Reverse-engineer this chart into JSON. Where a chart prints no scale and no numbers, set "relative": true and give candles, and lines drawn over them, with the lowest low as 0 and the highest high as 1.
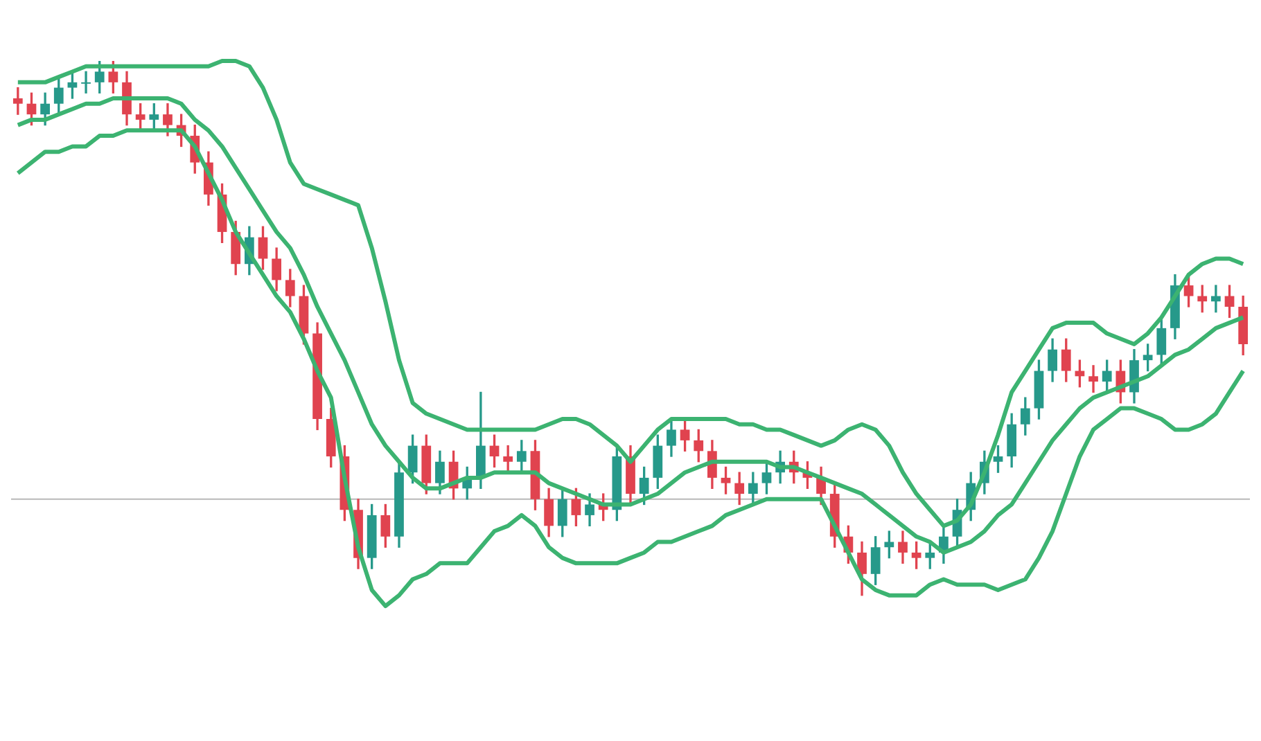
{
  "chart_data": {
    "type": "candlestick",
    "relative": true,
    "categories": [
      null,
      null,
      null,
      null,
      null,
      null,
      null,
      null,
      null,
      null,
      null,
      null,
      null,
      null,
      null,
      null,
      null,
      null,
      null,
      null,
      null,
      null,
      null,
      null,
      null,
      null,
      null,
      null,
      null,
      null,
      null,
      null,
      null,
      null,
      null,
      null,
      null,
      null,
      null,
      null,
      null,
      null,
      null,
      null,
      null,
      null,
      null,
      null,
      null,
      null,
      null,
      null,
      null,
      null,
      null,
      null,
      null,
      null,
      null,
      null,
      null,
      null,
      null,
      null,
      null,
      null,
      null,
      null,
      null,
      null,
      null,
      null,
      null,
      null,
      null,
      null,
      null,
      null,
      null,
      null,
      null,
      null,
      null,
      null,
      null,
      null,
      null,
      null,
      null,
      null,
      null
    ],
    "ohlc": [
      [
        0.93,
        0.95,
        0.9,
        0.92
      ],
      [
        0.92,
        0.94,
        0.88,
        0.9
      ],
      [
        0.9,
        0.94,
        0.88,
        0.92
      ],
      [
        0.92,
        0.97,
        0.9,
        0.95
      ],
      [
        0.95,
        0.98,
        0.93,
        0.96
      ],
      [
        0.96,
        0.98,
        0.94,
        0.96
      ],
      [
        0.96,
        1.0,
        0.94,
        0.98
      ],
      [
        0.98,
        1.0,
        0.94,
        0.96
      ],
      [
        0.96,
        0.98,
        0.88,
        0.9
      ],
      [
        0.9,
        0.92,
        0.87,
        0.89
      ],
      [
        0.89,
        0.92,
        0.87,
        0.9
      ],
      [
        0.9,
        0.92,
        0.86,
        0.88
      ],
      [
        0.88,
        0.9,
        0.84,
        0.86
      ],
      [
        0.86,
        0.88,
        0.79,
        0.81
      ],
      [
        0.81,
        0.83,
        0.73,
        0.75
      ],
      [
        0.75,
        0.77,
        0.66,
        0.68
      ],
      [
        0.68,
        0.7,
        0.6,
        0.62
      ],
      [
        0.62,
        0.69,
        0.6,
        0.67
      ],
      [
        0.67,
        0.69,
        0.61,
        0.63
      ],
      [
        0.63,
        0.65,
        0.57,
        0.59
      ],
      [
        0.59,
        0.61,
        0.54,
        0.56
      ],
      [
        0.56,
        0.58,
        0.47,
        0.49
      ],
      [
        0.49,
        0.51,
        0.31,
        0.33
      ],
      [
        0.33,
        0.35,
        0.24,
        0.26
      ],
      [
        0.26,
        0.28,
        0.14,
        0.16
      ],
      [
        0.16,
        0.18,
        0.05,
        0.07
      ],
      [
        0.07,
        0.17,
        0.05,
        0.15
      ],
      [
        0.15,
        0.17,
        0.09,
        0.11
      ],
      [
        0.11,
        0.25,
        0.09,
        0.23
      ],
      [
        0.23,
        0.3,
        0.21,
        0.28
      ],
      [
        0.28,
        0.3,
        0.19,
        0.21
      ],
      [
        0.21,
        0.27,
        0.19,
        0.25
      ],
      [
        0.25,
        0.27,
        0.18,
        0.2
      ],
      [
        0.2,
        0.24,
        0.18,
        0.22
      ],
      [
        0.22,
        0.38,
        0.2,
        0.28
      ],
      [
        0.28,
        0.3,
        0.24,
        0.26
      ],
      [
        0.26,
        0.28,
        0.23,
        0.25
      ],
      [
        0.25,
        0.29,
        0.23,
        0.27
      ],
      [
        0.27,
        0.29,
        0.16,
        0.18
      ],
      [
        0.18,
        0.2,
        0.11,
        0.13
      ],
      [
        0.13,
        0.2,
        0.11,
        0.18
      ],
      [
        0.18,
        0.2,
        0.13,
        0.15
      ],
      [
        0.15,
        0.19,
        0.13,
        0.17
      ],
      [
        0.17,
        0.19,
        0.14,
        0.16
      ],
      [
        0.16,
        0.28,
        0.14,
        0.26
      ],
      [
        0.26,
        0.28,
        0.17,
        0.19
      ],
      [
        0.19,
        0.24,
        0.17,
        0.22
      ],
      [
        0.22,
        0.3,
        0.2,
        0.28
      ],
      [
        0.28,
        0.33,
        0.26,
        0.31
      ],
      [
        0.31,
        0.33,
        0.27,
        0.29
      ],
      [
        0.29,
        0.31,
        0.25,
        0.27
      ],
      [
        0.27,
        0.29,
        0.2,
        0.22
      ],
      [
        0.22,
        0.24,
        0.19,
        0.21
      ],
      [
        0.21,
        0.23,
        0.17,
        0.19
      ],
      [
        0.19,
        0.23,
        0.17,
        0.21
      ],
      [
        0.21,
        0.25,
        0.19,
        0.23
      ],
      [
        0.23,
        0.27,
        0.21,
        0.25
      ],
      [
        0.25,
        0.27,
        0.21,
        0.23
      ],
      [
        0.23,
        0.25,
        0.2,
        0.22
      ],
      [
        0.22,
        0.24,
        0.17,
        0.19
      ],
      [
        0.19,
        0.21,
        0.09,
        0.11
      ],
      [
        0.11,
        0.13,
        0.06,
        0.08
      ],
      [
        0.08,
        0.1,
        0.0,
        0.04
      ],
      [
        0.04,
        0.11,
        0.02,
        0.09
      ],
      [
        0.09,
        0.12,
        0.07,
        0.1
      ],
      [
        0.1,
        0.12,
        0.06,
        0.08
      ],
      [
        0.08,
        0.1,
        0.05,
        0.07
      ],
      [
        0.07,
        0.1,
        0.05,
        0.08
      ],
      [
        0.08,
        0.13,
        0.06,
        0.11
      ],
      [
        0.11,
        0.18,
        0.09,
        0.16
      ],
      [
        0.16,
        0.23,
        0.14,
        0.21
      ],
      [
        0.21,
        0.27,
        0.19,
        0.25
      ],
      [
        0.25,
        0.28,
        0.23,
        0.26
      ],
      [
        0.26,
        0.34,
        0.24,
        0.32
      ],
      [
        0.32,
        0.37,
        0.3,
        0.35
      ],
      [
        0.35,
        0.44,
        0.33,
        0.42
      ],
      [
        0.42,
        0.48,
        0.4,
        0.46
      ],
      [
        0.46,
        0.48,
        0.4,
        0.42
      ],
      [
        0.42,
        0.44,
        0.39,
        0.41
      ],
      [
        0.41,
        0.43,
        0.38,
        0.4
      ],
      [
        0.4,
        0.44,
        0.38,
        0.42
      ],
      [
        0.42,
        0.44,
        0.36,
        0.38
      ],
      [
        0.38,
        0.46,
        0.36,
        0.44
      ],
      [
        0.44,
        0.47,
        0.42,
        0.45
      ],
      [
        0.45,
        0.52,
        0.43,
        0.5
      ],
      [
        0.5,
        0.6,
        0.48,
        0.58
      ],
      [
        0.58,
        0.6,
        0.54,
        0.56
      ],
      [
        0.56,
        0.58,
        0.53,
        0.55
      ],
      [
        0.55,
        0.58,
        0.53,
        0.56
      ],
      [
        0.56,
        0.58,
        0.52,
        0.54
      ],
      [
        0.54,
        0.56,
        0.45,
        0.47
      ]
    ],
    "colors": [
      "#e0434f",
      "#e0434f",
      "#26998a",
      "#26998a",
      "#26998a",
      "#26998a",
      "#26998a",
      "#e0434f",
      "#e0434f",
      "#e0434f",
      "#26998a",
      "#e0434f",
      "#e0434f",
      "#e0434f",
      "#e0434f",
      "#e0434f",
      "#e0434f",
      "#26998a",
      "#e0434f",
      "#e0434f",
      "#e0434f",
      "#e0434f",
      "#e0434f",
      "#e0434f",
      "#e0434f",
      "#e0434f",
      "#26998a",
      "#e0434f",
      "#26998a",
      "#26998a",
      "#e0434f",
      "#26998a",
      "#e0434f",
      "#26998a",
      "#26998a",
      "#e0434f",
      "#e0434f",
      "#26998a",
      "#e0434f",
      "#e0434f",
      "#26998a",
      "#e0434f",
      "#26998a",
      "#e0434f",
      "#26998a",
      "#e0434f",
      "#26998a",
      "#26998a",
      "#26998a",
      "#e0434f",
      "#e0434f",
      "#e0434f",
      "#e0434f",
      "#e0434f",
      "#26998a",
      "#26998a",
      "#26998a",
      "#e0434f",
      "#e0434f",
      "#e0434f",
      "#e0434f",
      "#e0434f",
      "#e0434f",
      "#26998a",
      "#26998a",
      "#e0434f",
      "#e0434f",
      "#26998a",
      "#26998a",
      "#26998a",
      "#26998a",
      "#26998a",
      "#26998a",
      "#26998a",
      "#26998a",
      "#26998a",
      "#26998a",
      "#e0434f",
      "#e0434f",
      "#e0434f",
      "#26998a",
      "#e0434f",
      "#26998a",
      "#26998a",
      "#26998a",
      "#26998a",
      "#e0434f",
      "#e0434f",
      "#26998a",
      "#e0434f",
      "#e0434f"
    ],
    "series": [
      {
        "type": "line",
        "color": "#3cb371",
        "values": [
          0.96,
          0.96,
          0.96,
          0.97,
          0.98,
          0.99,
          0.99,
          0.99,
          0.99,
          0.99,
          0.99,
          0.99,
          0.99,
          0.99,
          0.99,
          1.0,
          1.0,
          0.99,
          0.95,
          0.89,
          0.81,
          0.77,
          0.76,
          0.75,
          0.74,
          0.73,
          0.65,
          0.55,
          0.44,
          0.36,
          0.34,
          0.33,
          0.32,
          0.31,
          0.31,
          0.31,
          0.31,
          0.31,
          0.31,
          0.32,
          0.33,
          0.33,
          0.32,
          0.3,
          0.28,
          0.25,
          0.28,
          0.31,
          0.33,
          0.33,
          0.33,
          0.33,
          0.33,
          0.32,
          0.32,
          0.31,
          0.31,
          0.3,
          0.29,
          0.28,
          0.29,
          0.31,
          0.32,
          0.31,
          0.28,
          0.23,
          0.19,
          0.16,
          0.13,
          0.14,
          0.17,
          0.23,
          0.3,
          0.38,
          0.42,
          0.46,
          0.5,
          0.51,
          0.51,
          0.51,
          0.49,
          0.48,
          0.47,
          0.49,
          0.52,
          0.56,
          0.6,
          0.62,
          0.63,
          0.63,
          0.62
        ]
      },
      {
        "type": "line",
        "color": "#3cb371",
        "values": [
          0.88,
          0.89,
          0.89,
          0.9,
          0.91,
          0.92,
          0.92,
          0.93,
          0.93,
          0.93,
          0.93,
          0.93,
          0.92,
          0.89,
          0.87,
          0.84,
          0.8,
          0.76,
          0.72,
          0.68,
          0.65,
          0.6,
          0.54,
          0.49,
          0.44,
          0.38,
          0.32,
          0.28,
          0.25,
          0.22,
          0.2,
          0.2,
          0.21,
          0.22,
          0.22,
          0.23,
          0.23,
          0.23,
          0.23,
          0.21,
          0.2,
          0.19,
          0.18,
          0.17,
          0.17,
          0.17,
          0.18,
          0.19,
          0.21,
          0.23,
          0.24,
          0.25,
          0.25,
          0.25,
          0.25,
          0.25,
          0.24,
          0.24,
          0.23,
          0.22,
          0.21,
          0.2,
          0.19,
          0.17,
          0.15,
          0.13,
          0.11,
          0.1,
          0.08,
          0.09,
          0.1,
          0.12,
          0.15,
          0.17,
          0.21,
          0.25,
          0.29,
          0.32,
          0.35,
          0.37,
          0.38,
          0.39,
          0.4,
          0.41,
          0.43,
          0.45,
          0.46,
          0.48,
          0.5,
          0.51,
          0.52
        ]
      },
      {
        "type": "line",
        "color": "#3cb371",
        "values": [
          0.79,
          0.81,
          0.83,
          0.83,
          0.84,
          0.84,
          0.86,
          0.86,
          0.87,
          0.87,
          0.87,
          0.87,
          0.87,
          0.84,
          0.79,
          0.74,
          0.68,
          0.64,
          0.6,
          0.56,
          0.53,
          0.48,
          0.42,
          0.37,
          0.22,
          0.09,
          0.01,
          -0.02,
          0.0,
          0.03,
          0.04,
          0.06,
          0.06,
          0.06,
          0.09,
          0.12,
          0.13,
          0.15,
          0.13,
          0.09,
          0.07,
          0.06,
          0.06,
          0.06,
          0.06,
          0.07,
          0.08,
          0.1,
          0.1,
          0.11,
          0.12,
          0.13,
          0.15,
          0.16,
          0.17,
          0.18,
          0.18,
          0.18,
          0.18,
          0.18,
          0.13,
          0.08,
          0.03,
          0.01,
          0.0,
          0.0,
          0.0,
          0.02,
          0.03,
          0.02,
          0.02,
          0.02,
          0.01,
          0.02,
          0.03,
          0.07,
          0.12,
          0.19,
          0.26,
          0.31,
          0.33,
          0.35,
          0.35,
          0.34,
          0.33,
          0.31,
          0.31,
          0.32,
          0.34,
          0.38,
          0.42
        ]
      }
    ],
    "ref_lines": [
      {
        "axis": "y",
        "value": 0.18,
        "color": "#b8b8b8"
      }
    ]
  }
}
